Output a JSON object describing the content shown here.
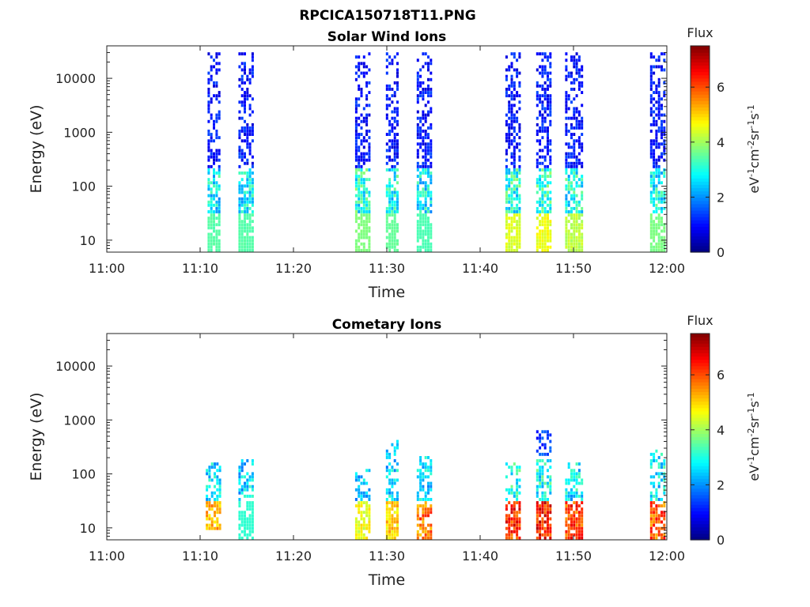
{
  "figure": {
    "title": "RPCICA150718T11.PNG"
  },
  "chart_data": [
    {
      "type": "heatmap",
      "title": "Solar Wind Ions",
      "xlabel": "Time",
      "ylabel": "Energy (eV)",
      "x_ticks": [
        "11:00",
        "11:10",
        "11:20",
        "11:30",
        "11:40",
        "11:50",
        "12:00"
      ],
      "xlim": [
        "11:00",
        "12:00"
      ],
      "y_scale": "log",
      "y_ticks": [
        "10",
        "100",
        "1000",
        "10000"
      ],
      "ylim": [
        6,
        40000
      ],
      "colorbar": {
        "label": "Flux",
        "unit": "eV-1cm-2sr-1s-1",
        "ticks": [
          "0",
          "2",
          "4",
          "6"
        ],
        "range": [
          0,
          7.5
        ],
        "colormap": "jet"
      },
      "bursts": [
        {
          "start": "11:10.8",
          "end": "11:12.0",
          "e_min": 6,
          "e_max": 30000,
          "low_flux": 3.2,
          "high_flux": 0.6,
          "core_flux": 3.5
        },
        {
          "start": "11:14.1",
          "end": "11:15.6",
          "e_min": 6,
          "e_max": 30000,
          "low_flux": 3.2,
          "high_flux": 0.6,
          "core_flux": 3.5
        },
        {
          "start": "11:26.6",
          "end": "11:28.1",
          "e_min": 6,
          "e_max": 30000,
          "low_flux": 3.6,
          "high_flux": 0.6,
          "core_flux": 3.8
        },
        {
          "start": "11:29.9",
          "end": "11:31.3",
          "e_min": 6,
          "e_max": 30000,
          "low_flux": 3.4,
          "high_flux": 0.6,
          "core_flux": 3.6
        },
        {
          "start": "11:33.2",
          "end": "11:34.8",
          "e_min": 6,
          "e_max": 30000,
          "low_flux": 3.2,
          "high_flux": 0.6,
          "core_flux": 3.4
        },
        {
          "start": "11:42.7",
          "end": "11:44.3",
          "e_min": 6,
          "e_max": 30000,
          "low_flux": 3.6,
          "high_flux": 0.6,
          "core_flux": 4.6
        },
        {
          "start": "11:46.0",
          "end": "11:47.6",
          "e_min": 6,
          "e_max": 30000,
          "low_flux": 3.6,
          "high_flux": 0.6,
          "core_flux": 4.8
        },
        {
          "start": "11:49.1",
          "end": "11:50.8",
          "e_min": 6,
          "e_max": 30000,
          "low_flux": 3.4,
          "high_flux": 0.6,
          "core_flux": 4.4
        },
        {
          "start": "11:58.2",
          "end": "11:59.8",
          "e_min": 6,
          "e_max": 30000,
          "low_flux": 3.4,
          "high_flux": 0.6,
          "core_flux": 3.8
        }
      ]
    },
    {
      "type": "heatmap",
      "title": "Cometary Ions",
      "xlabel": "Time",
      "ylabel": "Energy (eV)",
      "x_ticks": [
        "11:00",
        "11:10",
        "11:20",
        "11:30",
        "11:40",
        "11:50",
        "12:00"
      ],
      "xlim": [
        "11:00",
        "12:00"
      ],
      "y_scale": "log",
      "y_ticks": [
        "10",
        "100",
        "1000",
        "10000"
      ],
      "ylim": [
        6,
        40000
      ],
      "colorbar": {
        "label": "Flux",
        "unit": "eV-1cm-2sr-1s-1",
        "ticks": [
          "0",
          "2",
          "4",
          "6"
        ],
        "range": [
          0,
          7.5
        ],
        "colormap": "jet"
      },
      "bursts": [
        {
          "start": "11:10.6",
          "end": "11:12.0",
          "e_min": 8,
          "e_max": 150,
          "low_flux": 3.0,
          "high_flux": 0.8,
          "core_flux": 5.8
        },
        {
          "start": "11:14.1",
          "end": "11:15.6",
          "e_min": 6,
          "e_max": 180,
          "low_flux": 3.0,
          "high_flux": 0.7,
          "core_flux": 3.2
        },
        {
          "start": "11:26.6",
          "end": "11:28.1",
          "e_min": 6,
          "e_max": 110,
          "low_flux": 2.8,
          "high_flux": 0.8,
          "core_flux": 5.0
        },
        {
          "start": "11:29.9",
          "end": "11:31.3",
          "e_min": 6,
          "e_max": 400,
          "low_flux": 3.0,
          "high_flux": 2.0,
          "core_flux": 5.5
        },
        {
          "start": "11:33.2",
          "end": "11:34.8",
          "e_min": 6,
          "e_max": 200,
          "low_flux": 3.0,
          "high_flux": 0.8,
          "core_flux": 6.4
        },
        {
          "start": "11:42.7",
          "end": "11:44.3",
          "e_min": 6,
          "e_max": 150,
          "low_flux": 3.4,
          "high_flux": 0.8,
          "core_flux": 7.0
        },
        {
          "start": "11:46.0",
          "end": "11:47.6",
          "e_min": 6,
          "e_max": 600,
          "low_flux": 3.4,
          "high_flux": 0.9,
          "core_flux": 7.2
        },
        {
          "start": "11:49.1",
          "end": "11:50.8",
          "e_min": 6,
          "e_max": 150,
          "low_flux": 3.2,
          "high_flux": 0.8,
          "core_flux": 6.8
        },
        {
          "start": "11:58.2",
          "end": "11:59.8",
          "e_min": 6,
          "e_max": 280,
          "low_flux": 3.2,
          "high_flux": 2.5,
          "core_flux": 6.6
        }
      ]
    }
  ]
}
